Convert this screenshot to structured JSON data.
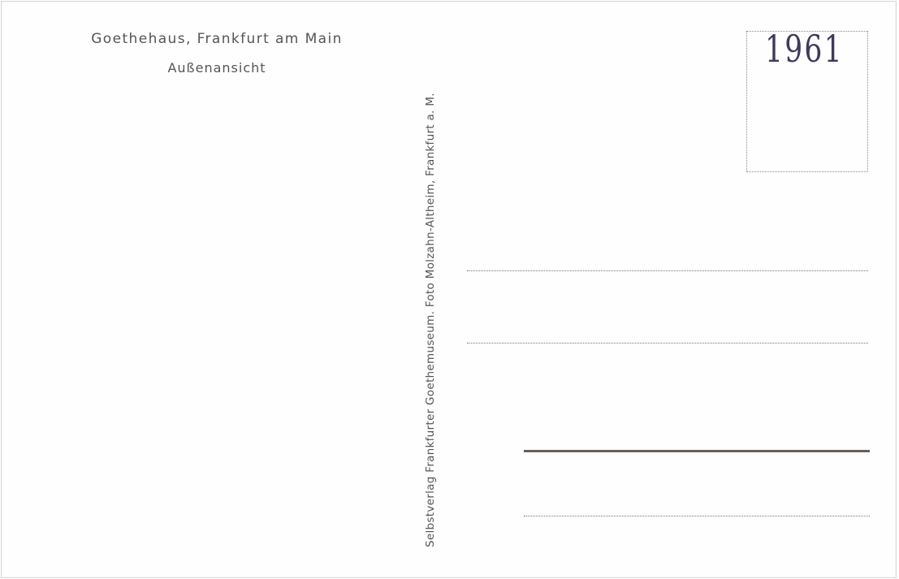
{
  "postcard": {
    "title": "Goethehaus, Frankfurt am Main",
    "subtitle": "Außenansicht",
    "publisher_line": "Selbstverlag Frankfurter Goethemuseum. Foto Molzahn-Altheim, Frankfurt a. M.",
    "stamp_box": {
      "handwritten_year": "1961"
    },
    "address_lines": 4
  }
}
